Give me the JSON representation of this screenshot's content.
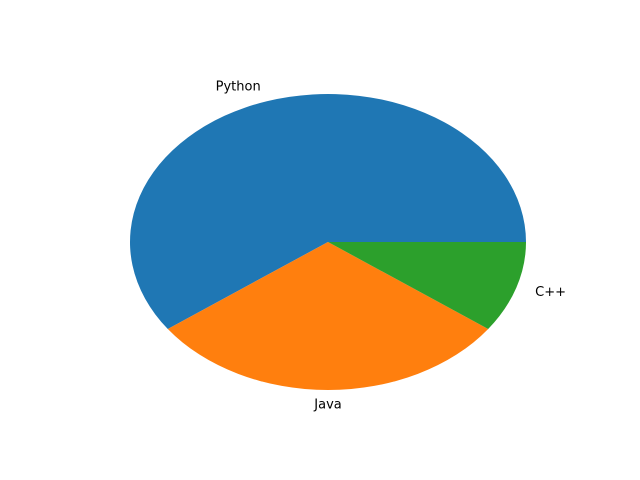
{
  "chart_data": {
    "type": "pie",
    "title": "",
    "categories": [
      "Python",
      "Java",
      "C++"
    ],
    "values": [
      60,
      30,
      10
    ],
    "colors": [
      "#1f77b4",
      "#ff7f0e",
      "#2ca02c"
    ],
    "start_angle_deg": 0,
    "direction": "counterclockwise",
    "legend": "none",
    "labels_outside": true
  }
}
